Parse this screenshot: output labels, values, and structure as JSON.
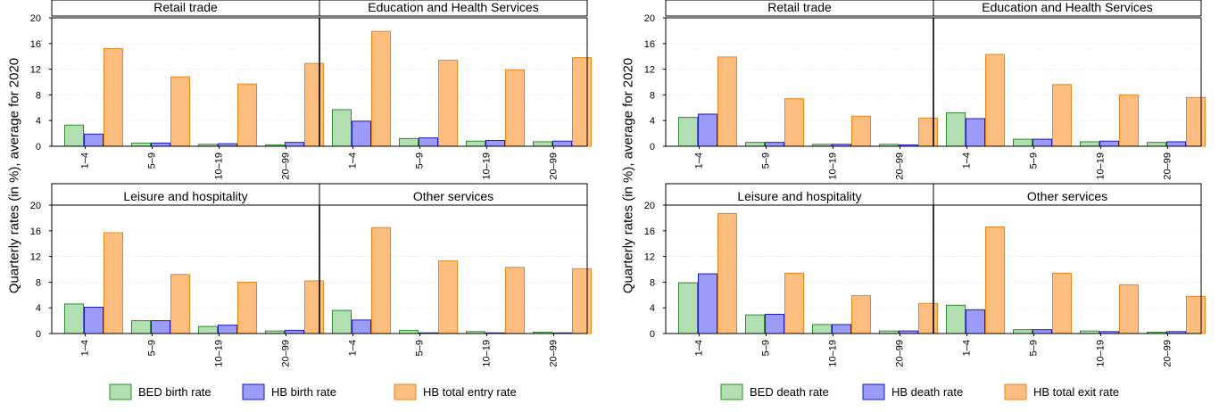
{
  "colors": {
    "bed": {
      "fill": "#b2dfb2",
      "stroke": "#2e8b2e"
    },
    "hb": {
      "fill": "#9c9cf8",
      "stroke": "#1a1acc"
    },
    "total": {
      "fill": "#fdbd7e",
      "stroke": "#e8861a"
    }
  },
  "chart_data": [
    {
      "type": "bar",
      "ylabel": "Quarterly rates (in %), average for 2020",
      "ylim": [
        0,
        20
      ],
      "yticks": [
        0,
        4,
        8,
        12,
        16,
        20
      ],
      "categories": [
        "1–4",
        "5–9",
        "10–19",
        "20–99"
      ],
      "legend": [
        "BED birth rate",
        "HB birth rate",
        "HB total entry rate"
      ],
      "legend_position": "bottom",
      "panels": [
        {
          "title": "Retail trade",
          "series": [
            {
              "name": "BED birth rate",
              "values": [
                3.3,
                0.5,
                0.3,
                0.2
              ]
            },
            {
              "name": "HB birth rate",
              "values": [
                1.9,
                0.5,
                0.4,
                0.6
              ]
            },
            {
              "name": "HB total entry rate",
              "values": [
                15.2,
                10.8,
                9.7,
                12.9
              ]
            }
          ]
        },
        {
          "title": "Education and Health Services",
          "series": [
            {
              "name": "BED birth rate",
              "values": [
                5.7,
                1.2,
                0.8,
                0.7
              ]
            },
            {
              "name": "HB birth rate",
              "values": [
                3.9,
                1.3,
                0.9,
                0.8
              ]
            },
            {
              "name": "HB total entry rate",
              "values": [
                17.9,
                13.4,
                11.9,
                13.8
              ]
            }
          ]
        },
        {
          "title": "Leisure and hospitality",
          "series": [
            {
              "name": "BED birth rate",
              "values": [
                4.6,
                2.0,
                1.1,
                0.4
              ]
            },
            {
              "name": "HB birth rate",
              "values": [
                4.1,
                2.0,
                1.3,
                0.5
              ]
            },
            {
              "name": "HB total entry rate",
              "values": [
                15.7,
                9.2,
                8.0,
                8.2
              ]
            }
          ]
        },
        {
          "title": "Other services",
          "series": [
            {
              "name": "BED birth rate",
              "values": [
                3.6,
                0.5,
                0.3,
                0.2
              ]
            },
            {
              "name": "HB birth rate",
              "values": [
                2.1,
                0.1,
                0.1,
                0.1
              ]
            },
            {
              "name": "HB total entry rate",
              "values": [
                16.5,
                11.3,
                10.3,
                10.1
              ]
            }
          ]
        }
      ]
    },
    {
      "type": "bar",
      "ylabel": "Quarterly rates (in %), average for 2020",
      "ylim": [
        0,
        20
      ],
      "yticks": [
        0,
        4,
        8,
        12,
        16,
        20
      ],
      "categories": [
        "1–4",
        "5–9",
        "10–19",
        "20–99"
      ],
      "legend": [
        "BED death rate",
        "HB death rate",
        "HB total exit rate"
      ],
      "legend_position": "bottom",
      "panels": [
        {
          "title": "Retail trade",
          "series": [
            {
              "name": "BED death rate",
              "values": [
                4.5,
                0.6,
                0.3,
                0.3
              ]
            },
            {
              "name": "HB death rate",
              "values": [
                5.0,
                0.6,
                0.3,
                0.2
              ]
            },
            {
              "name": "HB total exit rate",
              "values": [
                13.9,
                7.4,
                4.7,
                4.4
              ]
            }
          ]
        },
        {
          "title": "Education and Health Services",
          "series": [
            {
              "name": "BED death rate",
              "values": [
                5.2,
                1.1,
                0.7,
                0.6
              ]
            },
            {
              "name": "HB death rate",
              "values": [
                4.3,
                1.1,
                0.8,
                0.7
              ]
            },
            {
              "name": "HB total exit rate",
              "values": [
                14.3,
                9.6,
                8.0,
                7.6
              ]
            }
          ]
        },
        {
          "title": "Leisure and hospitality",
          "series": [
            {
              "name": "BED death rate",
              "values": [
                7.9,
                2.9,
                1.4,
                0.4
              ]
            },
            {
              "name": "HB death rate",
              "values": [
                9.3,
                3.0,
                1.4,
                0.4
              ]
            },
            {
              "name": "HB total exit rate",
              "values": [
                18.7,
                9.4,
                5.9,
                4.7
              ]
            }
          ]
        },
        {
          "title": "Other services",
          "series": [
            {
              "name": "BED death rate",
              "values": [
                4.4,
                0.6,
                0.4,
                0.2
              ]
            },
            {
              "name": "HB death rate",
              "values": [
                3.7,
                0.6,
                0.3,
                0.3
              ]
            },
            {
              "name": "HB total exit rate",
              "values": [
                16.6,
                9.4,
                7.6,
                5.8
              ]
            }
          ]
        }
      ]
    }
  ]
}
